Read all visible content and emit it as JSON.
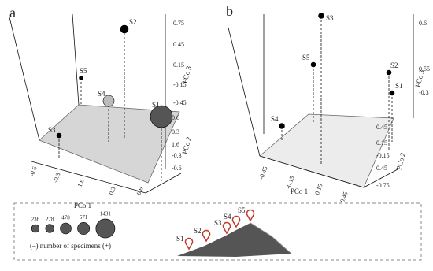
{
  "panels": [
    {
      "label": "a",
      "axes": {
        "pco1": {
          "label": "PCo 1",
          "ticks": [
            "-0.6",
            "-0.3",
            "1.6",
            "0.3",
            "0.6"
          ]
        },
        "pco2": {
          "label": "PCo 2",
          "ticks": [
            "0.6",
            "0.3",
            "1.6",
            "-0.3",
            "-0.6"
          ]
        },
        "pco3": {
          "label": "PCo 3",
          "ticks": [
            "0.75",
            "0.45",
            "0.15",
            "-0.15",
            "-0.45"
          ]
        }
      },
      "points": [
        {
          "name": "S1"
        },
        {
          "name": "S2"
        },
        {
          "name": "S3"
        },
        {
          "name": "S4"
        },
        {
          "name": "S5"
        }
      ]
    },
    {
      "label": "b",
      "axes": {
        "pco1": {
          "label": "PCo 1",
          "ticks": [
            "-0.45",
            "-0.15",
            "0.15",
            "0.45"
          ]
        },
        "pco2": {
          "label": "PCo 2",
          "ticks": [
            "0.45",
            "0.15",
            "-0.15",
            "0.45",
            "-0.75"
          ]
        },
        "pco3": {
          "label": "PCo 3",
          "ticks": [
            "0.6",
            "0.55",
            "-0.3"
          ]
        }
      },
      "points": [
        {
          "name": "S1"
        },
        {
          "name": "S2"
        },
        {
          "name": "S3"
        },
        {
          "name": "S4"
        },
        {
          "name": "S5"
        }
      ]
    }
  ],
  "legend": {
    "sizes": [
      236,
      278,
      478,
      571,
      1431
    ],
    "caption": "(–)  number of specimens  (+)",
    "sites": [
      "S1",
      "S2",
      "S3",
      "S4",
      "S5"
    ]
  }
}
